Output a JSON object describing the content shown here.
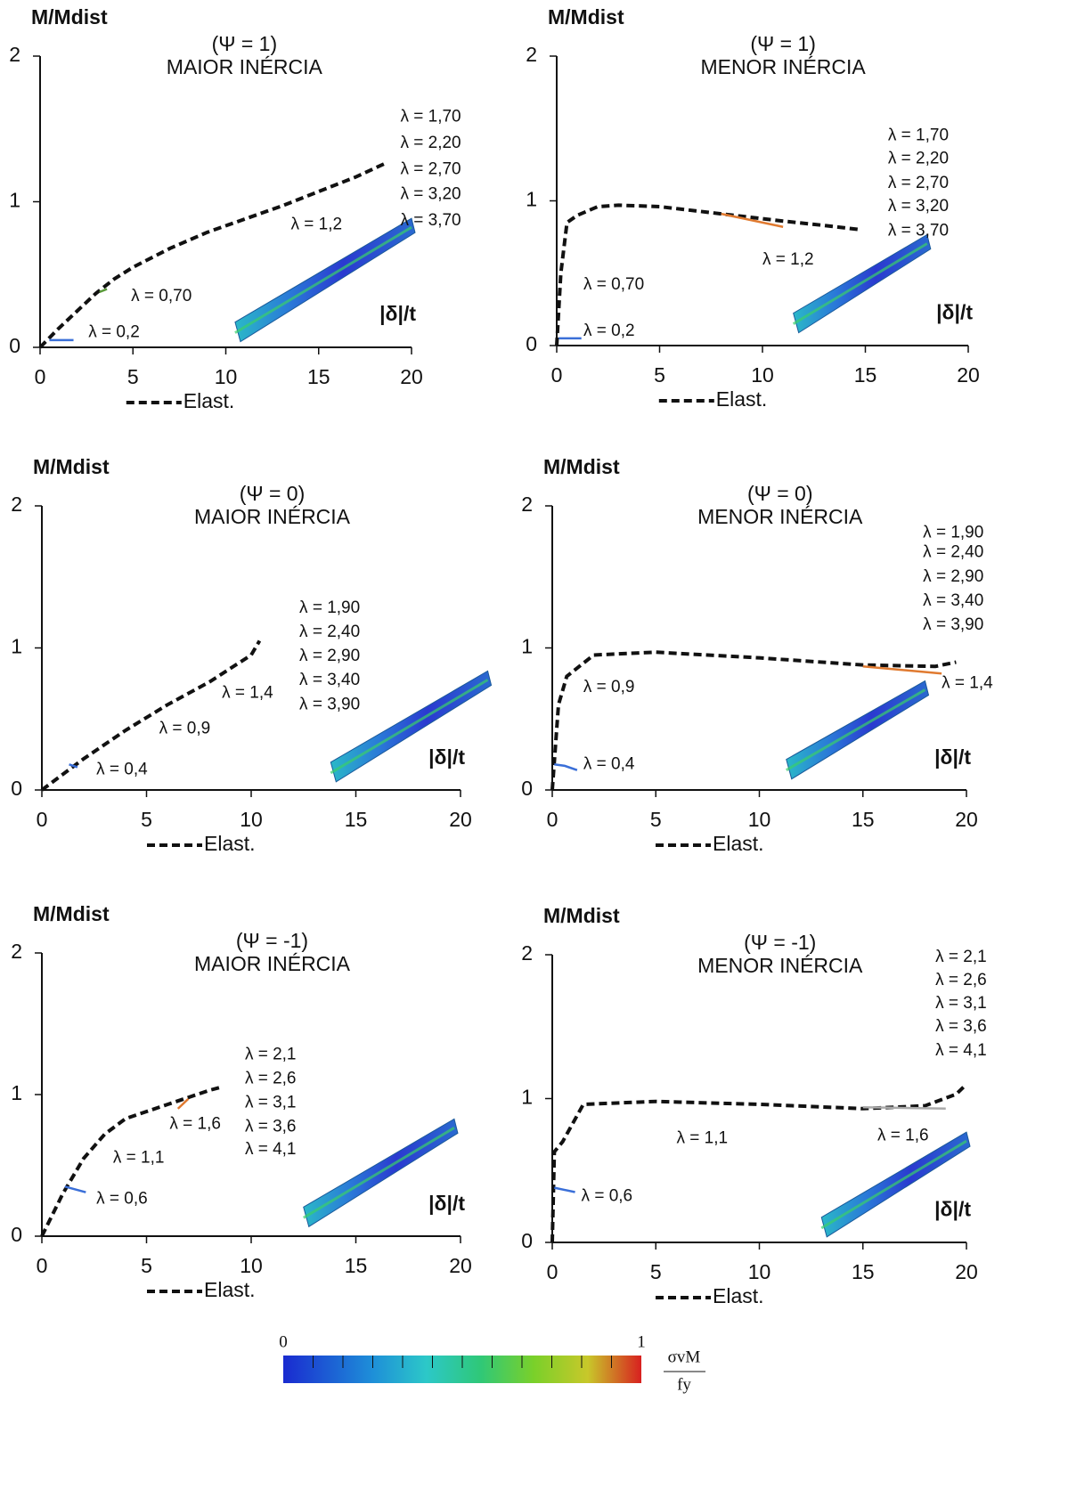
{
  "chart_data": [
    {
      "type": "line",
      "title": [
        "(Ψ = 1)",
        "MAIOR INÉRCIA"
      ],
      "y_label": "M/Mdist",
      "x_label": "|δ|/t",
      "xlim": [
        0,
        20
      ],
      "ylim": [
        0,
        2
      ],
      "xticks": [
        0,
        5,
        10,
        15,
        20
      ],
      "yticks": [
        0,
        1,
        2
      ],
      "series": [
        {
          "name": "Elast.",
          "color": "#111111",
          "dash": true,
          "x": [
            0,
            1,
            2,
            3,
            4,
            5,
            7,
            9,
            11,
            13,
            15,
            17,
            18.7
          ],
          "values": [
            0,
            0.13,
            0.25,
            0.37,
            0.47,
            0.55,
            0.68,
            0.79,
            0.88,
            0.97,
            1.07,
            1.17,
            1.27
          ]
        },
        {
          "color": "#3a6fd8",
          "x": [
            0.5,
            1.8
          ],
          "values": [
            0.05,
            0.05
          ]
        },
        {
          "color": "#5a9a3a",
          "x": [
            3.2,
            3.6
          ],
          "values": [
            0.38,
            0.4
          ]
        }
      ],
      "annotations": [
        {
          "text": "λ = 0,2",
          "x": 2.6,
          "y": 0.1
        },
        {
          "text": "λ = 0,70",
          "x": 4.9,
          "y": 0.35
        },
        {
          "text": "λ = 1,2",
          "x": 13.5,
          "y": 0.84
        },
        {
          "text": "λ = 1,70",
          "x": 19.4,
          "y": 1.58
        },
        {
          "text": "λ = 2,20",
          "x": 19.4,
          "y": 1.4
        },
        {
          "text": "λ = 2,70",
          "x": 19.4,
          "y": 1.22
        },
        {
          "text": "λ = 3,20",
          "x": 19.4,
          "y": 1.05
        },
        {
          "text": "λ = 3,70",
          "x": 19.4,
          "y": 0.87
        }
      ]
    },
    {
      "type": "line",
      "title": [
        "(Ψ = 1)",
        "MENOR INÉRCIA"
      ],
      "y_label": "M/Mdist",
      "x_label": "|δ|/t",
      "xlim": [
        0,
        20
      ],
      "ylim": [
        0,
        2
      ],
      "xticks": [
        0,
        5,
        10,
        15,
        20
      ],
      "yticks": [
        0,
        1,
        2
      ],
      "series": [
        {
          "name": "Elast.",
          "color": "#111111",
          "dash": true,
          "x": [
            0,
            0.2,
            0.5,
            1,
            2,
            3,
            5,
            8,
            11,
            13,
            14.8
          ],
          "values": [
            0,
            0.5,
            0.85,
            0.9,
            0.96,
            0.97,
            0.96,
            0.91,
            0.86,
            0.83,
            0.8
          ]
        },
        {
          "color": "#3a6fd8",
          "x": [
            0.1,
            1.2
          ],
          "values": [
            0.05,
            0.05
          ]
        },
        {
          "color": "#e07a30",
          "x": [
            8,
            11
          ],
          "values": [
            0.91,
            0.82
          ]
        }
      ],
      "annotations": [
        {
          "text": "λ = 0,2",
          "x": 1.3,
          "y": 0.1
        },
        {
          "text": "λ = 0,70",
          "x": 1.3,
          "y": 0.42
        },
        {
          "text": "λ = 1,2",
          "x": 10,
          "y": 0.59
        },
        {
          "text": "λ = 1,70",
          "x": 16.1,
          "y": 1.45
        },
        {
          "text": "λ = 2,20",
          "x": 16.1,
          "y": 1.29
        },
        {
          "text": "λ = 2,70",
          "x": 16.1,
          "y": 1.12
        },
        {
          "text": "λ = 3,20",
          "x": 16.1,
          "y": 0.96
        },
        {
          "text": "λ = 3,70",
          "x": 16.1,
          "y": 0.79
        }
      ]
    },
    {
      "type": "line",
      "title": [
        "(Ψ = 0)",
        "MAIOR INÉRCIA"
      ],
      "y_label": "M/Mdist",
      "x_label": "|δ|/t",
      "xlim": [
        0,
        20
      ],
      "ylim": [
        0,
        2
      ],
      "xticks": [
        0,
        5,
        10,
        15,
        20
      ],
      "yticks": [
        0,
        1,
        2
      ],
      "series": [
        {
          "name": "Elast.",
          "color": "#111111",
          "dash": true,
          "x": [
            0,
            2,
            4,
            6,
            8,
            10,
            10.4
          ],
          "values": [
            0,
            0.22,
            0.42,
            0.6,
            0.76,
            0.95,
            1.05
          ]
        },
        {
          "color": "#3a6fd8",
          "x": [
            1.3,
            1.7
          ],
          "values": [
            0.18,
            0.16
          ]
        }
      ],
      "annotations": [
        {
          "text": "λ = 0,4",
          "x": 2.6,
          "y": 0.14
        },
        {
          "text": "λ = 0,9",
          "x": 5.6,
          "y": 0.43
        },
        {
          "text": "λ = 1,4",
          "x": 8.6,
          "y": 0.68
        },
        {
          "text": "λ = 1,90",
          "x": 12.3,
          "y": 1.28
        },
        {
          "text": "λ = 2,40",
          "x": 12.3,
          "y": 1.11
        },
        {
          "text": "λ = 2,90",
          "x": 12.3,
          "y": 0.94
        },
        {
          "text": "λ = 3,40",
          "x": 12.3,
          "y": 0.77
        },
        {
          "text": "λ = 3,90",
          "x": 12.3,
          "y": 0.6
        }
      ]
    },
    {
      "type": "line",
      "title": [
        "(Ψ = 0)",
        "MENOR INÉRCIA"
      ],
      "y_label": "M/Mdist",
      "x_label": "|δ|/t",
      "xlim": [
        0,
        20
      ],
      "ylim": [
        0,
        2
      ],
      "xticks": [
        0,
        5,
        10,
        15,
        20
      ],
      "yticks": [
        0,
        1,
        2
      ],
      "series": [
        {
          "name": "Elast.",
          "color": "#111111",
          "dash": true,
          "x": [
            0,
            0.3,
            0.7,
            2,
            5,
            10,
            15,
            18.5,
            19.5
          ],
          "values": [
            0,
            0.6,
            0.8,
            0.95,
            0.97,
            0.93,
            0.88,
            0.87,
            0.9
          ]
        },
        {
          "color": "#3a6fd8",
          "x": [
            0.1,
            0.6,
            1.2
          ],
          "values": [
            0.18,
            0.17,
            0.14
          ]
        },
        {
          "color": "#e07a30",
          "x": [
            15,
            18.8
          ],
          "values": [
            0.87,
            0.82
          ]
        }
      ],
      "annotations": [
        {
          "text": "λ = 0,4",
          "x": 1.5,
          "y": 0.18
        },
        {
          "text": "λ = 0,9",
          "x": 1.5,
          "y": 0.72
        },
        {
          "text": "λ = 1,4",
          "x": 18.8,
          "y": 0.75
        },
        {
          "text": "λ = 1,90",
          "x": 17.9,
          "y": 1.81
        },
        {
          "text": "λ = 2,40",
          "x": 17.9,
          "y": 1.67
        },
        {
          "text": "λ = 2,90",
          "x": 17.9,
          "y": 1.5
        },
        {
          "text": "λ = 3,40",
          "x": 17.9,
          "y": 1.33
        },
        {
          "text": "λ = 3,90",
          "x": 17.9,
          "y": 1.16
        }
      ]
    },
    {
      "type": "line",
      "title": [
        "(Ψ = -1)",
        "MAIOR INÉRCIA"
      ],
      "y_label": "M/Mdist",
      "x_label": "|δ|/t",
      "xlim": [
        0,
        20
      ],
      "ylim": [
        0,
        2
      ],
      "xticks": [
        0,
        5,
        10,
        15,
        20
      ],
      "yticks": [
        0,
        1,
        2
      ],
      "series": [
        {
          "name": "Elast.",
          "color": "#111111",
          "dash": true,
          "x": [
            0,
            1,
            2,
            3,
            4,
            6,
            8,
            8.5
          ],
          "values": [
            0,
            0.3,
            0.55,
            0.72,
            0.83,
            0.93,
            1.03,
            1.05
          ]
        },
        {
          "color": "#3a6fd8",
          "x": [
            1.1,
            2.1
          ],
          "values": [
            0.35,
            0.31
          ]
        },
        {
          "color": "#e07a30",
          "x": [
            6.5,
            7
          ],
          "values": [
            0.9,
            0.97
          ]
        }
      ],
      "annotations": [
        {
          "text": "λ = 0,6",
          "x": 2.6,
          "y": 0.26
        },
        {
          "text": "λ = 1,1",
          "x": 3.4,
          "y": 0.55
        },
        {
          "text": "λ = 1,6",
          "x": 6.1,
          "y": 0.79
        },
        {
          "text": "λ = 2,1",
          "x": 9.7,
          "y": 1.28
        },
        {
          "text": "λ = 2,6",
          "x": 9.7,
          "y": 1.11
        },
        {
          "text": "λ = 3,1",
          "x": 9.7,
          "y": 0.94
        },
        {
          "text": "λ = 3,6",
          "x": 9.7,
          "y": 0.77
        },
        {
          "text": "λ = 4,1",
          "x": 9.7,
          "y": 0.61
        }
      ]
    },
    {
      "type": "line",
      "title": [
        "(Ψ = -1)",
        "MENOR INÉRCIA"
      ],
      "y_label": "M/Mdist",
      "x_label": "|δ|/t",
      "xlim": [
        0,
        20
      ],
      "ylim": [
        0,
        2
      ],
      "xticks": [
        0,
        5,
        10,
        15,
        20
      ],
      "yticks": [
        0,
        1,
        2
      ],
      "series": [
        {
          "name": "Elast.",
          "color": "#111111",
          "dash": true,
          "x": [
            0,
            0.1,
            0.5,
            1.5,
            5,
            10,
            15,
            18,
            19.5,
            20
          ],
          "values": [
            0,
            0.63,
            0.7,
            0.96,
            0.98,
            0.96,
            0.93,
            0.95,
            1.03,
            1.1
          ]
        },
        {
          "color": "#3a6fd8",
          "x": [
            0.1,
            1.1
          ],
          "values": [
            0.38,
            0.35
          ]
        },
        {
          "color": "#aaaaaa",
          "x": [
            15,
            19
          ],
          "values": [
            0.94,
            0.93
          ]
        }
      ],
      "annotations": [
        {
          "text": "λ = 0,6",
          "x": 1.4,
          "y": 0.32
        },
        {
          "text": "λ = 1,1",
          "x": 6,
          "y": 0.72
        },
        {
          "text": "λ = 1,6",
          "x": 15.7,
          "y": 0.74
        },
        {
          "text": "λ = 2,1",
          "x": 18.5,
          "y": 1.98
        },
        {
          "text": "λ = 2,6",
          "x": 18.5,
          "y": 1.82
        },
        {
          "text": "λ = 3,1",
          "x": 18.5,
          "y": 1.66
        },
        {
          "text": "λ = 3,6",
          "x": 18.5,
          "y": 1.5
        },
        {
          "text": "λ = 4,1",
          "x": 18.5,
          "y": 1.33
        }
      ]
    }
  ],
  "colorbar": {
    "range": [
      0,
      1
    ],
    "label_num": "σvM",
    "label_den": "fy"
  }
}
